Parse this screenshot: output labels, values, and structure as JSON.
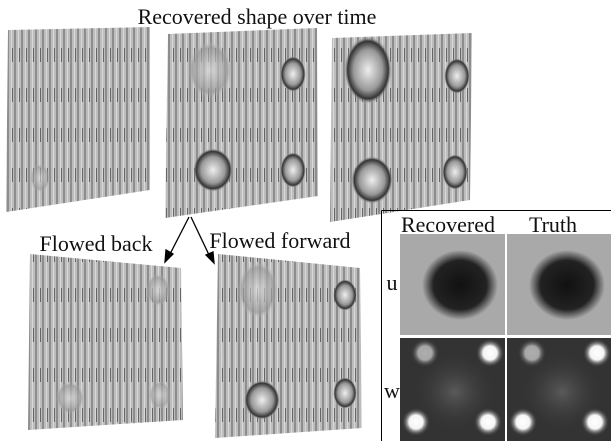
{
  "header": {
    "title": "Recovered shape over time"
  },
  "labels": {
    "flowed_back": "Flowed back",
    "flowed_forward": "Flowed forward"
  },
  "panel": {
    "columns": [
      "Recovered",
      "Truth"
    ],
    "rows": [
      "u",
      "w"
    ]
  }
}
